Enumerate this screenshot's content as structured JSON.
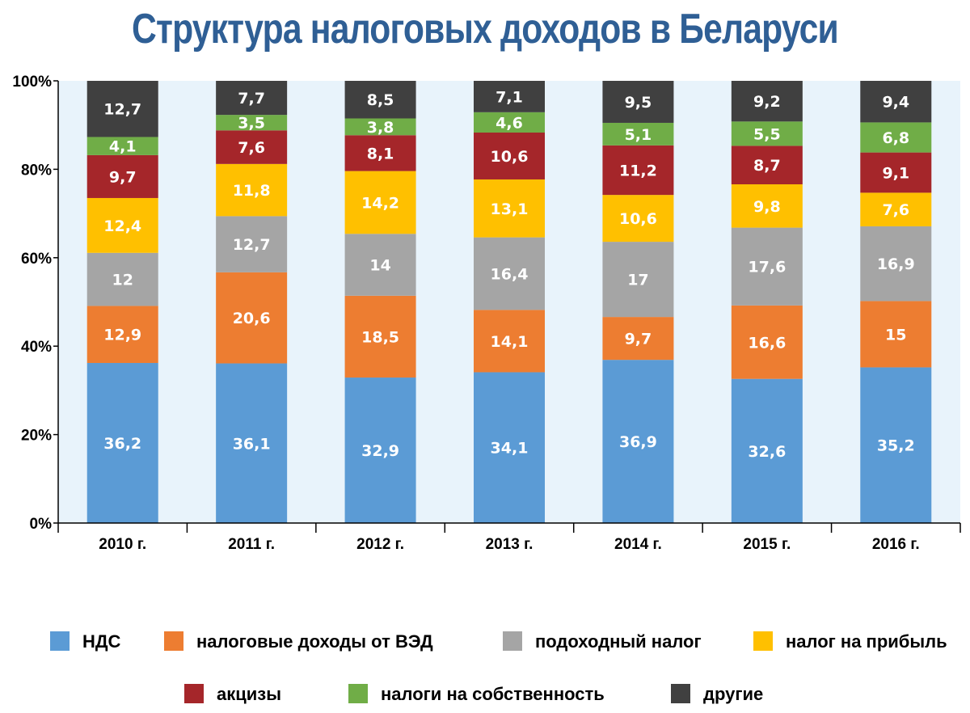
{
  "chart_data": {
    "type": "bar",
    "stacked": true,
    "title": "Структура налоговых доходов в Беларуси",
    "categories": [
      "2010 г.",
      "2011 г.",
      "2012 г.",
      "2013 г.",
      "2014 г.",
      "2015 г.",
      "2016 г."
    ],
    "y_ticks": [
      "0%",
      "20%",
      "40%",
      "60%",
      "80%",
      "100%"
    ],
    "ylim": [
      0,
      100
    ],
    "legend_position": "bottom",
    "series": [
      {
        "name": "НДС",
        "color": "#5b9bd5",
        "values": [
          36.2,
          36.1,
          32.9,
          34.1,
          36.9,
          32.6,
          35.2
        ],
        "labels": [
          "36,2",
          "36,1",
          "32,9",
          "34,1",
          "36,9",
          "32,6",
          "35,2"
        ]
      },
      {
        "name": "налоговые доходы от ВЭД",
        "color": "#ed7d31",
        "values": [
          12.9,
          20.6,
          18.5,
          14.1,
          9.7,
          16.6,
          15
        ],
        "labels": [
          "12,9",
          "20,6",
          "18,5",
          "14,1",
          "9,7",
          "16,6",
          "15"
        ]
      },
      {
        "name": "подоходный налог",
        "color": "#a5a5a5",
        "values": [
          12,
          12.7,
          14,
          16.4,
          17,
          17.6,
          16.9
        ],
        "labels": [
          "12",
          "12,7",
          "14",
          "16,4",
          "17",
          "17,6",
          "16,9"
        ]
      },
      {
        "name": "налог на прибыль",
        "color": "#ffc000",
        "values": [
          12.4,
          11.8,
          14.2,
          13.1,
          10.6,
          9.8,
          7.6
        ],
        "labels": [
          "12,4",
          "11,8",
          "14,2",
          "13,1",
          "10,6",
          "9,8",
          "7,6"
        ]
      },
      {
        "name": "акцизы",
        "color": "#a5262a",
        "values": [
          9.7,
          7.6,
          8.1,
          10.6,
          11.2,
          8.7,
          9.1
        ],
        "labels": [
          "9,7",
          "7,6",
          "8,1",
          "10,6",
          "11,2",
          "8,7",
          "9,1"
        ]
      },
      {
        "name": "налоги на собственность",
        "color": "#70ad47",
        "values": [
          4.1,
          3.5,
          3.8,
          4.6,
          5.1,
          5.5,
          6.8
        ],
        "labels": [
          "4,1",
          "3,5",
          "3,8",
          "4,6",
          "5,1",
          "5,5",
          "6,8"
        ]
      },
      {
        "name": "другие",
        "color": "#404040",
        "values": [
          12.7,
          7.7,
          8.5,
          7.1,
          9.5,
          9.2,
          9.4
        ],
        "labels": [
          "12,7",
          "7,7",
          "8,5",
          "7,1",
          "9,5",
          "9,2",
          "9,4"
        ]
      }
    ],
    "plot_background": "#e8f3fb"
  }
}
